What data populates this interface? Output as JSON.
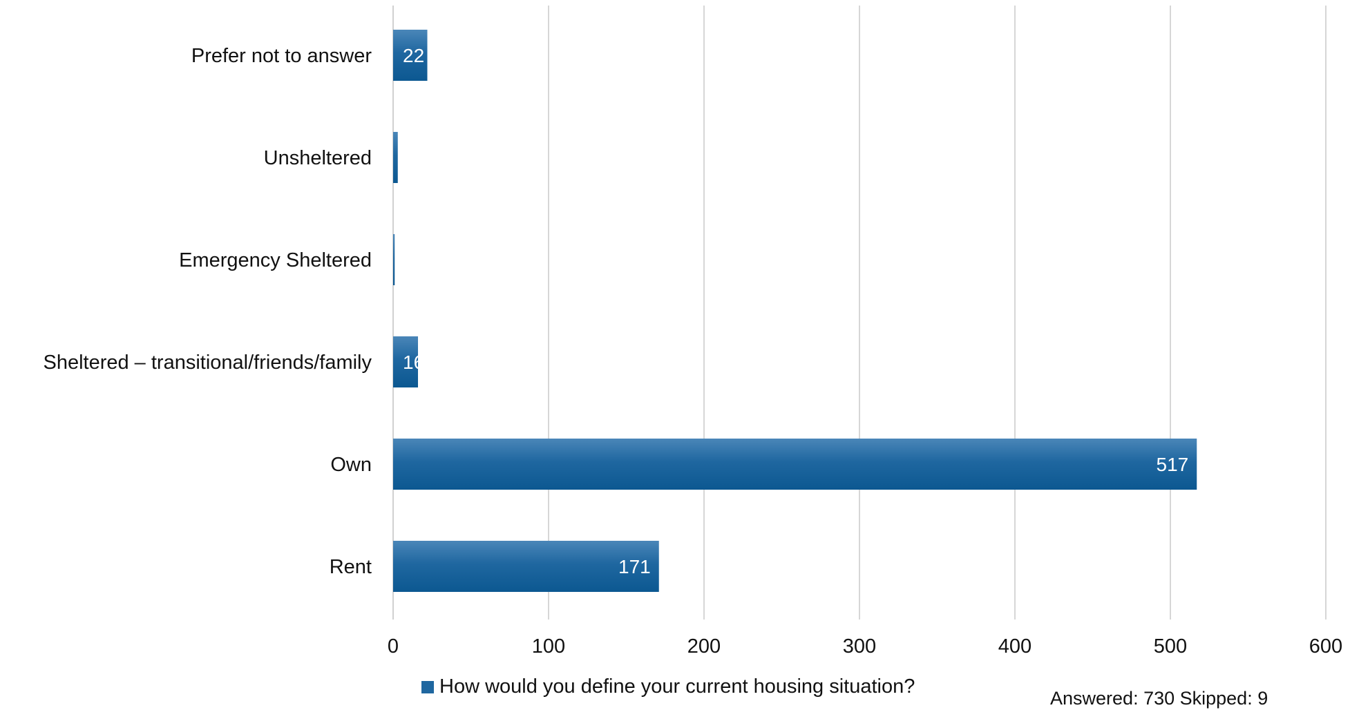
{
  "chart_data": {
    "type": "bar",
    "orientation": "horizontal",
    "categories": [
      "Prefer not to answer",
      "Unsheltered",
      "Emergency Sheltered",
      "Sheltered – transitional/friends/family",
      "Own",
      "Rent"
    ],
    "series": [
      {
        "name": "How would you define your current housing situation?",
        "values": [
          22,
          3,
          1,
          16,
          517,
          171
        ],
        "data_labels": [
          "22",
          "",
          "",
          "16",
          "517",
          "171"
        ],
        "color": "#1f67a0"
      }
    ],
    "xlim": [
      0,
      600
    ],
    "xticks": [
      "0",
      "100",
      "200",
      "300",
      "400",
      "500",
      "600"
    ],
    "grid": "vertical",
    "legend_position": "bottom",
    "footnote": "Answered: 730  Skipped: 9"
  }
}
